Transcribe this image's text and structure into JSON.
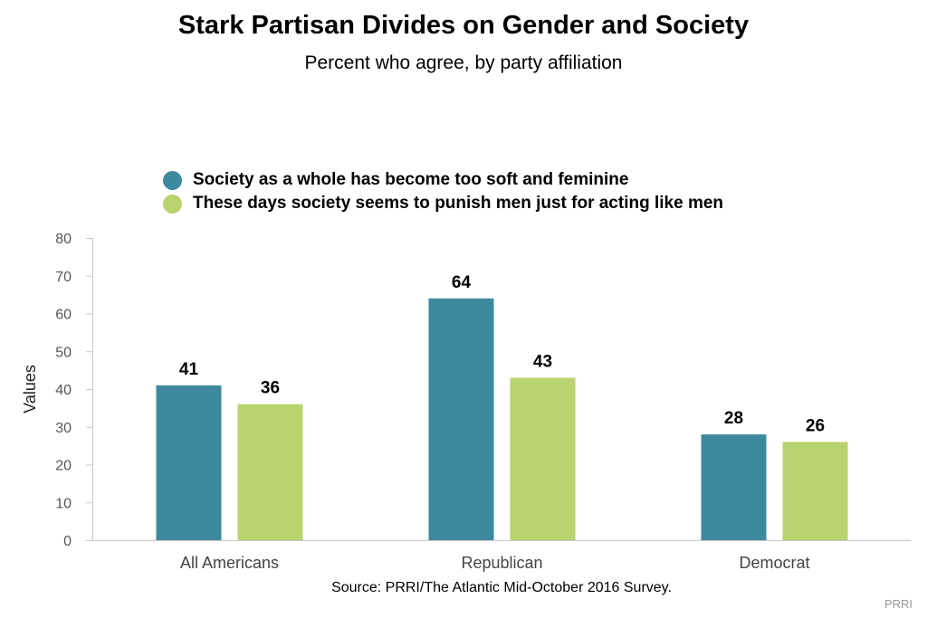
{
  "chart_data": {
    "type": "bar",
    "title": "Stark Partisan Divides on Gender and Society",
    "subtitle": "Percent who agree, by party affiliation",
    "categories": [
      "All Americans",
      "Republican",
      "Democrat"
    ],
    "series": [
      {
        "name": "Society as a whole has become too soft and feminine",
        "color": "#3d8a9e",
        "values": [
          41,
          64,
          28
        ]
      },
      {
        "name": "These days society seems to punish men just for acting like men",
        "color": "#b9d36f",
        "values": [
          36,
          43,
          26
        ]
      }
    ],
    "ylabel": "Values",
    "ylim": [
      0,
      80
    ],
    "yticks": [
      0,
      10,
      20,
      30,
      40,
      50,
      60,
      70,
      80
    ],
    "legend_position": "top-left",
    "grid": false
  },
  "source": "Source: PRRI/The Atlantic Mid-October 2016 Survey.",
  "credit": "PRRI"
}
